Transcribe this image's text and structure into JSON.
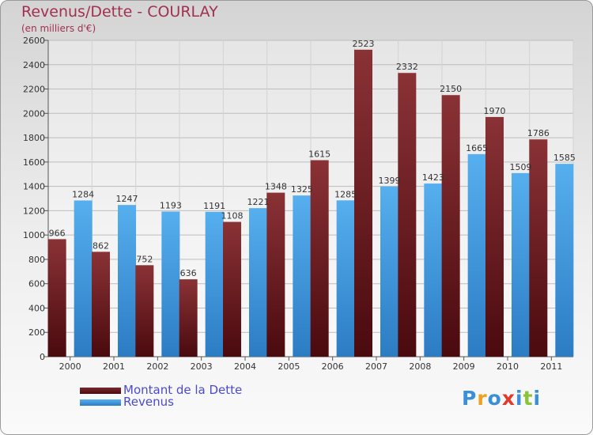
{
  "title": "Revenus/Dette - COURLAY",
  "subtitle": "(en milliers d'€)",
  "logo": {
    "text": "Proxiti",
    "letter_colors": [
      "#3a8fd6",
      "#f0a020",
      "#3a8fd6",
      "#e03a2a",
      "#3a8fd6",
      "#8ac23a",
      "#3a8fd6"
    ]
  },
  "colors": {
    "dette": "#7a2a2e",
    "revenus": "#4aa3e8",
    "title": "#a23050",
    "legend_text": "#4a4ad4"
  },
  "chart_data": {
    "type": "bar",
    "title": "Revenus/Dette - COURLAY",
    "subtitle": "(en milliers d'€)",
    "categories": [
      "2000",
      "2001",
      "2002",
      "2003",
      "2004",
      "2005",
      "2006",
      "2007",
      "2008",
      "2009",
      "2010",
      "2011"
    ],
    "series": [
      {
        "name": "Montant de la Dette",
        "values": [
          966,
          862,
          752,
          636,
          1108,
          1348,
          1615,
          2523,
          2332,
          2150,
          1970,
          1786
        ]
      },
      {
        "name": "Revenus",
        "values": [
          1284,
          1247,
          1193,
          1191,
          1221,
          1325,
          1285,
          1399,
          1423,
          1665,
          1509,
          1585
        ]
      }
    ],
    "yticks": [
      0,
      200,
      400,
      600,
      800,
      1000,
      1200,
      1400,
      1600,
      1800,
      2000,
      2200,
      2400,
      2600
    ],
    "ylim": [
      0,
      2600
    ],
    "grid": true,
    "legend": "bottom-left"
  }
}
